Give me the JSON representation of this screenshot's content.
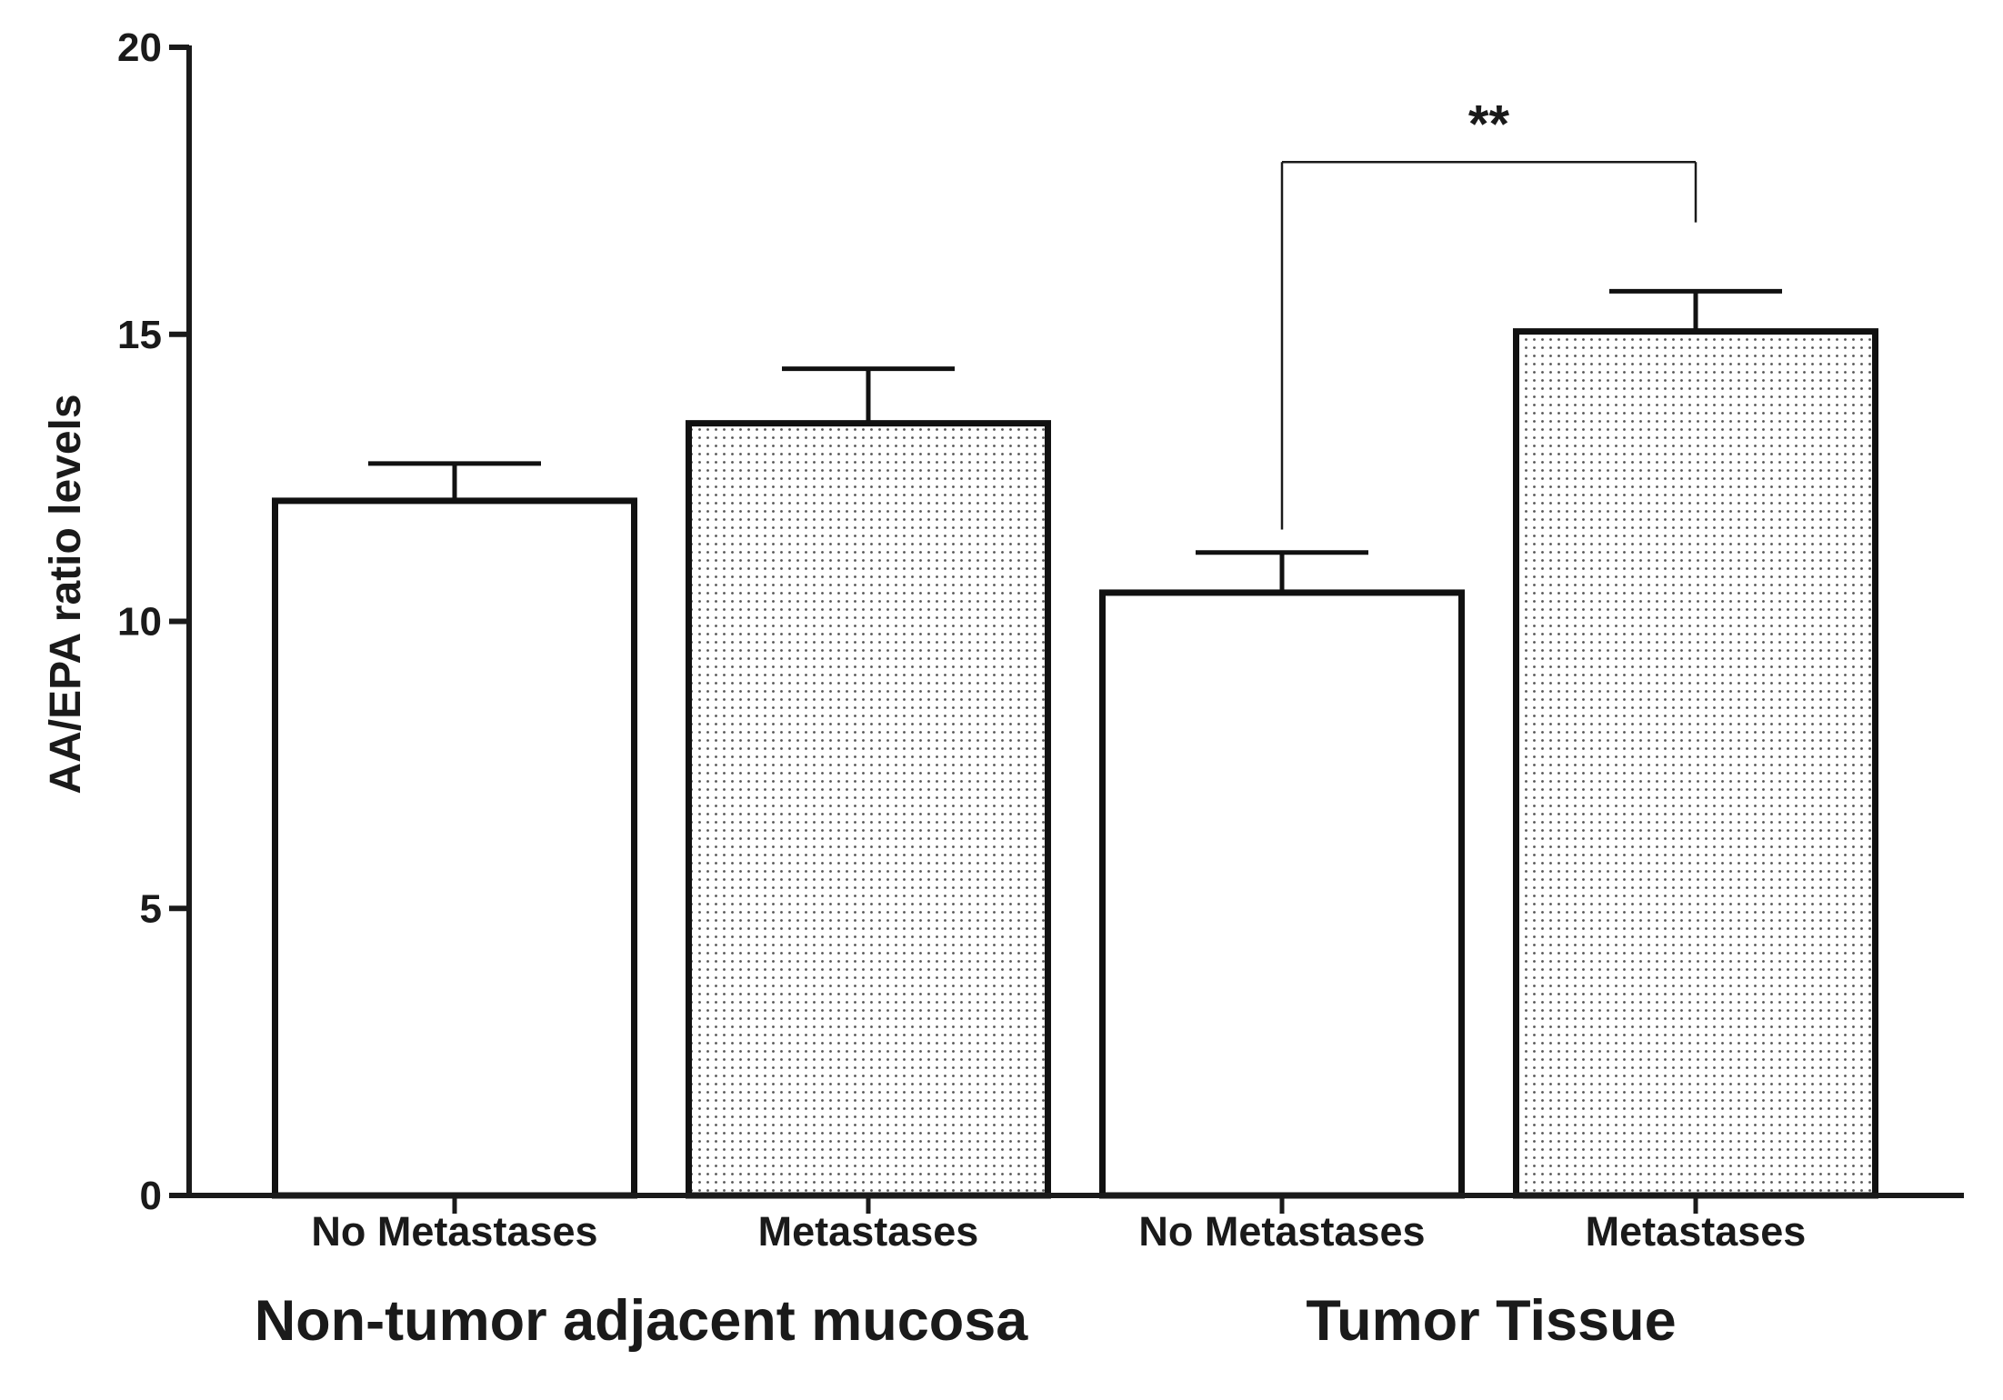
{
  "chart_data": {
    "type": "bar",
    "title": "",
    "xlabel": "",
    "ylabel": "AA/EPA ratio levels",
    "ylim": [
      0,
      20
    ],
    "yticks": [
      0,
      5,
      10,
      15,
      20
    ],
    "grid": false,
    "categories": [
      "No Metastases",
      "Metastases",
      "No Metastases",
      "Metastases"
    ],
    "groups": [
      {
        "label": "Non-tumor adjacent mucosa",
        "categories": [
          0,
          1
        ]
      },
      {
        "label": "Tumor Tissue",
        "categories": [
          2,
          3
        ]
      }
    ],
    "values": [
      12.1,
      13.45,
      10.5,
      15.05
    ],
    "errors": [
      0.65,
      0.95,
      0.7,
      0.7
    ],
    "fills": [
      "plain",
      "dotted",
      "plain",
      "dotted"
    ],
    "significance": [
      {
        "from": 2,
        "to": 3,
        "label": "**",
        "y": 18.0
      }
    ]
  },
  "colors": {
    "axis": "#1a1a1a",
    "bar_stroke": "#111111",
    "bar_fill": "#ffffff",
    "dot_fill": "#555555"
  }
}
